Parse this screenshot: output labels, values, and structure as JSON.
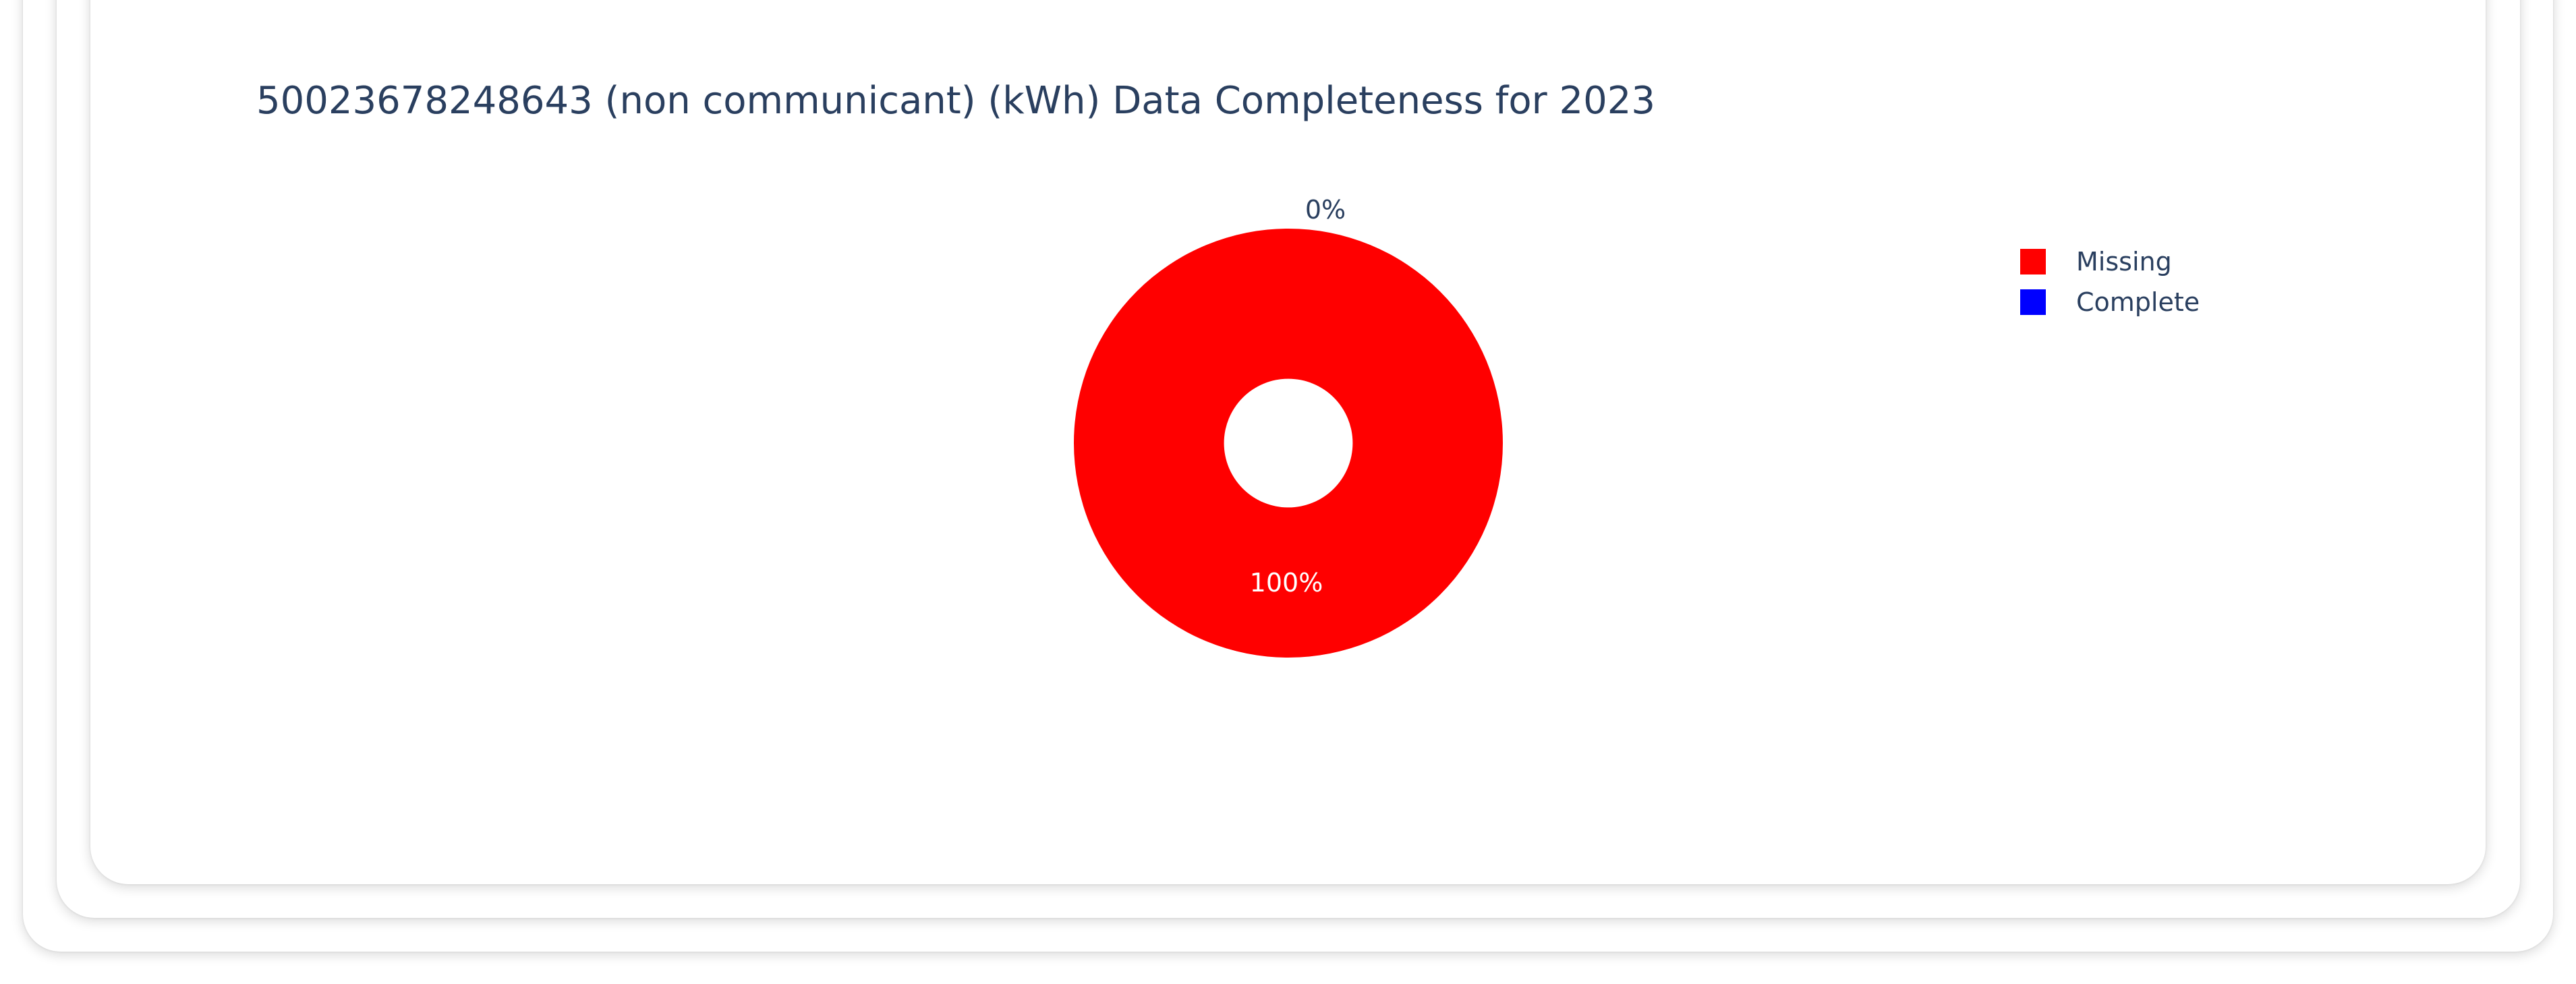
{
  "chart_data": {
    "type": "pie",
    "hole": 0.3,
    "title": "50023678248643 (non communicant) (kWh) Data Completeness for 2023",
    "slices": [
      {
        "name": "Missing",
        "value": 100,
        "label": "100%",
        "color": "#ff0000"
      },
      {
        "name": "Complete",
        "value": 0,
        "label": "0%",
        "color": "#0000ff"
      }
    ],
    "legend_placement": "top-right"
  }
}
